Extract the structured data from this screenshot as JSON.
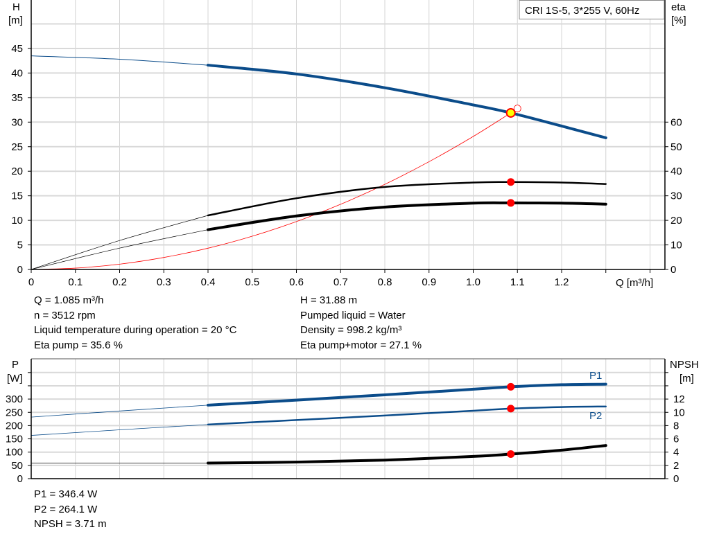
{
  "legend_box": "CRI 1S-5, 3*255 V, 60Hz",
  "colors": {
    "head": "#0b4c8a",
    "efficiency": "#000000",
    "system": "#ff0000",
    "power": "#0b4c8a",
    "npsh": "#000000",
    "duty_point": "#ff0000",
    "duty_highlight": "#ffff00"
  },
  "chart_data": [
    {
      "type": "line",
      "xlabel": "Q [m³/h]",
      "ylabel": "H\n[m]",
      "ylabel_parts": [
        "H",
        "[m]"
      ],
      "y2label_parts": [
        "eta",
        "[%]"
      ],
      "xlim": [
        0,
        1.45
      ],
      "ylim": [
        0,
        50
      ],
      "y2lim": [
        0,
        100
      ],
      "grid": true,
      "x_ticks": [
        "0",
        "0.1",
        "0.2",
        "0.3",
        "0.4",
        "0.5",
        "0.6",
        "0.7",
        "0.8",
        "0.9",
        "1.0",
        "1.1",
        "1.2"
      ],
      "y_ticks": [
        "0",
        "5",
        "10",
        "15",
        "20",
        "25",
        "30",
        "35",
        "40",
        "45"
      ],
      "y2_ticks": [
        "0",
        "10",
        "20",
        "30",
        "40",
        "50",
        "60"
      ],
      "series": [
        {
          "key": "head",
          "axis": "H",
          "x": [
            0,
            0.2,
            0.4,
            0.6,
            0.8,
            1.0,
            1.085,
            1.2,
            1.3
          ],
          "y": [
            43.5,
            42.8,
            41.6,
            39.8,
            37.0,
            33.5,
            31.88,
            29.2,
            26.8
          ]
        },
        {
          "key": "eta_pump",
          "axis": "eta",
          "x": [
            0,
            0.2,
            0.4,
            0.6,
            0.8,
            1.0,
            1.085,
            1.2,
            1.3
          ],
          "y": [
            0,
            11.8,
            22,
            29,
            33.6,
            35.4,
            35.6,
            35.4,
            34.8
          ]
        },
        {
          "key": "eta_pump_motor",
          "axis": "eta",
          "x": [
            0,
            0.2,
            0.4,
            0.6,
            0.8,
            1.0,
            1.085,
            1.2,
            1.3
          ],
          "y": [
            0,
            8.7,
            16.2,
            21.8,
            25.4,
            27,
            27.1,
            27,
            26.6
          ]
        },
        {
          "key": "system",
          "axis": "H",
          "x": [
            0,
            0.1,
            0.2,
            0.3,
            0.4,
            0.5,
            0.6,
            0.7,
            0.8,
            0.9,
            1.0,
            1.085,
            1.1
          ],
          "y": [
            0,
            0.27,
            1.08,
            2.44,
            4.33,
            6.77,
            9.75,
            13.27,
            17.33,
            21.94,
            27.08,
            31.88,
            32.77
          ]
        }
      ],
      "duty_points": [
        {
          "key": "head",
          "x": 1.085,
          "y": 31.88
        },
        {
          "key": "eta_pump",
          "x": 1.085,
          "y": 35.6
        },
        {
          "key": "eta_pump_motor",
          "x": 1.085,
          "y": 27.1
        }
      ]
    },
    {
      "type": "line",
      "ylabel_parts": [
        "P",
        "[W]"
      ],
      "y2label_parts": [
        "NPSH",
        "[m]"
      ],
      "xlim": [
        0,
        1.45
      ],
      "ylim": [
        0,
        450
      ],
      "y2lim": [
        0,
        18
      ],
      "grid": true,
      "y_ticks": [
        "0",
        "50",
        "100",
        "150",
        "200",
        "250",
        "300"
      ],
      "y2_ticks": [
        "0",
        "2",
        "4",
        "6",
        "8",
        "10",
        "12"
      ],
      "series": [
        {
          "key": "P1",
          "name": "P1",
          "axis": "P",
          "x": [
            0,
            0.2,
            0.4,
            0.6,
            0.8,
            1.0,
            1.085,
            1.2,
            1.3
          ],
          "y": [
            232,
            255,
            277,
            296,
            316,
            337,
            346.4,
            354,
            356
          ]
        },
        {
          "key": "P2",
          "name": "P2",
          "axis": "P",
          "x": [
            0,
            0.2,
            0.4,
            0.6,
            0.8,
            1.0,
            1.085,
            1.2,
            1.3
          ],
          "y": [
            163,
            184,
            204,
            221,
            238,
            256,
            264.1,
            270,
            272
          ]
        },
        {
          "key": "NPSH",
          "axis": "NPSH",
          "x": [
            0,
            0.2,
            0.4,
            0.6,
            0.8,
            1.0,
            1.085,
            1.2,
            1.3
          ],
          "y": [
            2.35,
            2.35,
            2.35,
            2.5,
            2.8,
            3.35,
            3.71,
            4.3,
            5.0
          ]
        }
      ],
      "duty_points": [
        {
          "key": "P1",
          "x": 1.085,
          "y": 346.4
        },
        {
          "key": "P2",
          "x": 1.085,
          "y": 264.1
        },
        {
          "key": "NPSH",
          "x": 1.085,
          "y": 3.71
        }
      ]
    }
  ],
  "results_top": {
    "left": [
      "Q = 1.085 m³/h",
      "n = 3512 rpm",
      "Liquid temperature during operation = 20 °C",
      "Eta pump = 35.6 %"
    ],
    "right": [
      "H = 31.88 m",
      "Pumped liquid = Water",
      "Density = 998.2 kg/m³",
      "Eta pump+motor = 27.1 %"
    ]
  },
  "results_bottom": [
    "P1 = 346.4 W",
    "P2 = 264.1 W",
    "NPSH = 3.71 m"
  ]
}
